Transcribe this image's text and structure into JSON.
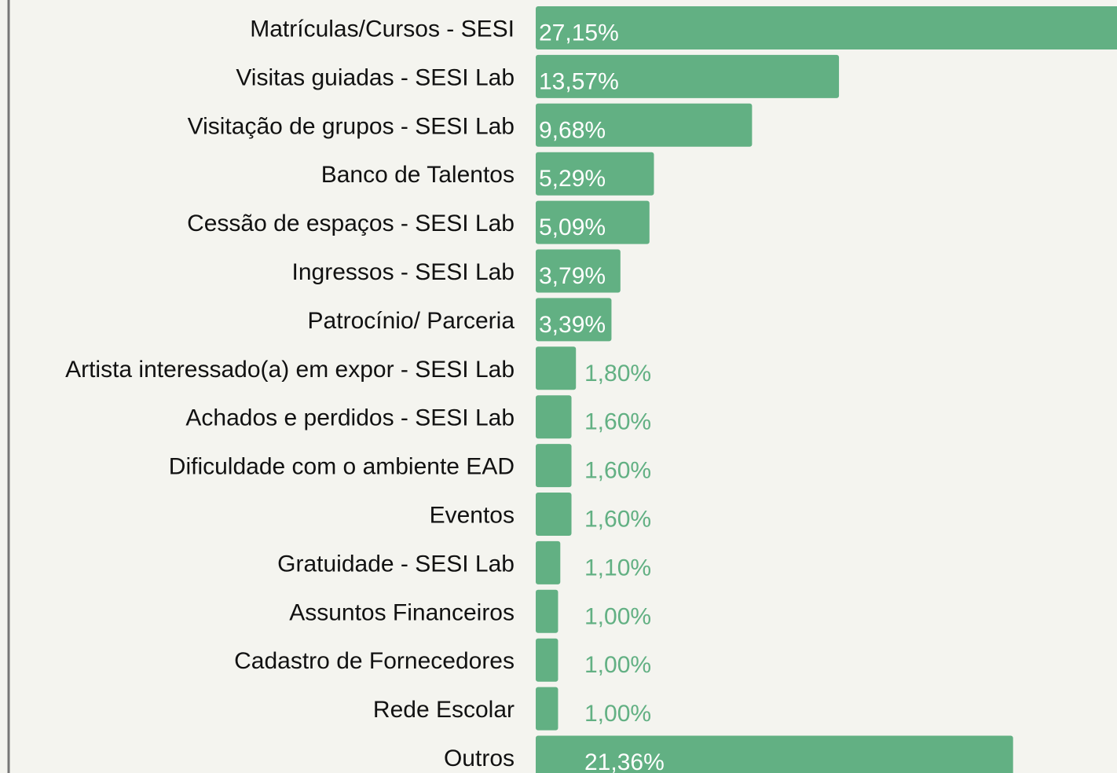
{
  "chart_data": {
    "type": "bar",
    "orientation": "horizontal",
    "color": "#62b083",
    "categories": [
      "Matrículas/Cursos - SESI",
      "Visitas guiadas - SESI Lab",
      "Visitação de grupos - SESI Lab",
      "Banco de Talentos",
      "Cessão de espaços - SESI Lab",
      "Ingressos - SESI Lab",
      "Patrocínio/ Parceria",
      "Artista interessado(a) em expor - SESI Lab",
      "Achados e perdidos - SESI Lab",
      "Dificuldade com o ambiente EAD",
      "Eventos",
      "Gratuidade - SESI Lab",
      "Assuntos Financeiros",
      "Cadastro de Fornecedores",
      "Rede Escolar",
      "Outros"
    ],
    "values": [
      27.15,
      13.57,
      9.68,
      5.29,
      5.09,
      3.79,
      3.39,
      1.8,
      1.6,
      1.6,
      1.6,
      1.1,
      1.0,
      1.0,
      1.0,
      21.36
    ],
    "value_labels": [
      "27,15%",
      "13,57%",
      "9,68%",
      "5,29%",
      "5,09%",
      "3,79%",
      "3,39%",
      "1,80%",
      "1,60%",
      "1,60%",
      "1,60%",
      "1,10%",
      "1,00%",
      "1,00%",
      "1,00%",
      "21,36%"
    ]
  }
}
